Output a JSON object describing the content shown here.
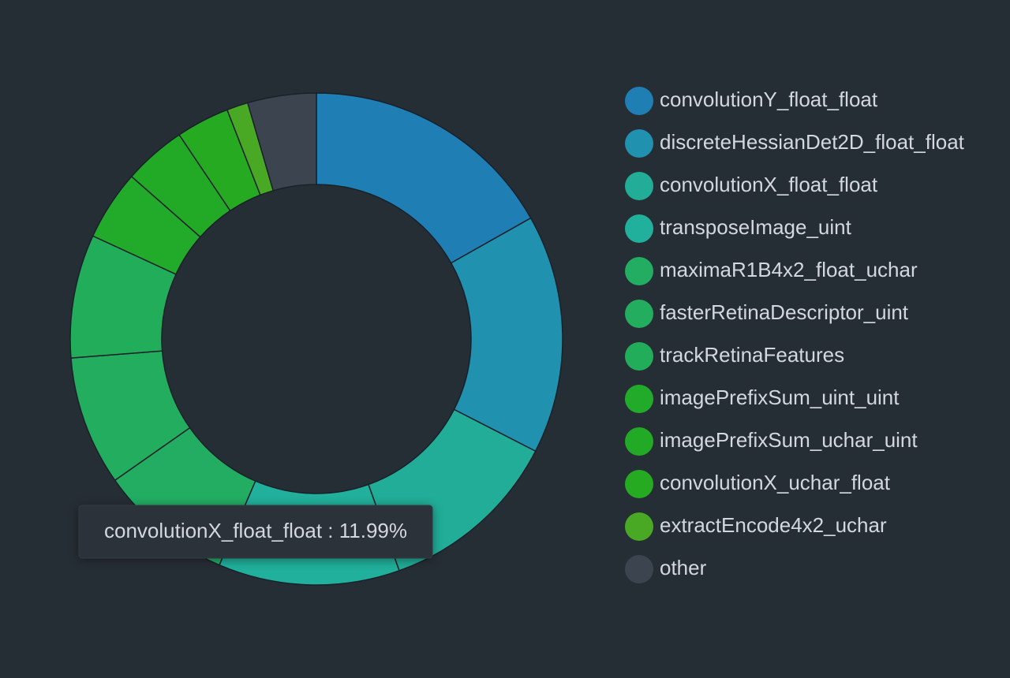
{
  "chart_data": {
    "type": "donut",
    "categories": [
      "convolutionY_float_float",
      "discreteHessianDet2D_float_float",
      "convolutionX_float_float",
      "transposeImage_uint",
      "maximaR1B4x2_float_uchar",
      "fasterRetinaDescriptor_uint",
      "trackRetinaFeatures",
      "imagePrefixSum_uint_uint",
      "imagePrefixSum_uchar_uint",
      "convolutionX_uchar_float",
      "extractEncode4x2_uchar",
      "other"
    ],
    "values": [
      16.8,
      15.7,
      11.99,
      11.9,
      8.8,
      8.5,
      8.1,
      4.6,
      4.1,
      3.5,
      1.4,
      4.5
    ],
    "colors": [
      "#1f7eb3",
      "#2191b0",
      "#21ad97",
      "#21b09b",
      "#22ad63",
      "#22ae5e",
      "#22ad5a",
      "#22ab2b",
      "#22aa26",
      "#26aa22",
      "#4aa924",
      "#3c454f"
    ],
    "tooltip": "convolutionX_float_float : 11.99%"
  }
}
